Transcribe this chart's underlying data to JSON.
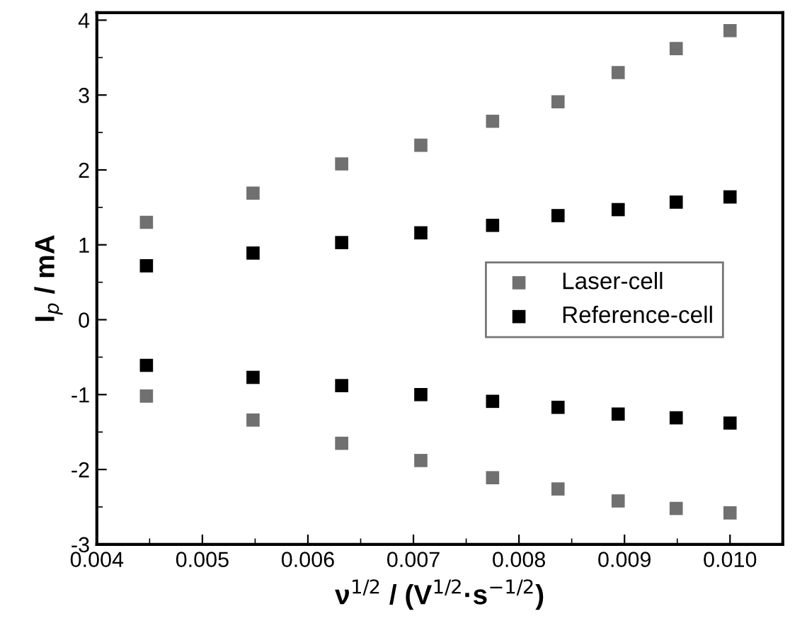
{
  "chart_data": {
    "type": "scatter",
    "xlabel": "ν$^{1/2}$ / (V$^{1/2}$·s$^{−1/2}$)",
    "ylabel": "I$_{p}$ / mA",
    "xlim": [
      0.004,
      0.0105
    ],
    "ylim": [
      -3,
      4.1
    ],
    "xticks": [
      {
        "value": 0.004,
        "label": "0.004"
      },
      {
        "value": 0.005,
        "label": "0.005"
      },
      {
        "value": 0.006,
        "label": "0.006"
      },
      {
        "value": 0.007,
        "label": "0.007"
      },
      {
        "value": 0.008,
        "label": "0.008"
      },
      {
        "value": 0.009,
        "label": "0.009"
      },
      {
        "value": 0.01,
        "label": "0.010"
      }
    ],
    "yticks": [
      -3,
      -2,
      -1,
      0,
      1,
      2,
      3,
      4
    ],
    "grid": false,
    "legend": "right",
    "marker": "square",
    "series": [
      {
        "name": "Laser-cell",
        "color": "#707070",
        "x": [
          0.00447,
          0.00548,
          0.00632,
          0.00707,
          0.00775,
          0.00837,
          0.00894,
          0.00949,
          0.01,
          0.00447,
          0.00548,
          0.00632,
          0.00707,
          0.00775,
          0.00837,
          0.00894,
          0.00949,
          0.01
        ],
        "values": [
          1.3,
          1.69,
          2.08,
          2.33,
          2.65,
          2.91,
          3.3,
          3.62,
          3.86,
          -1.02,
          -1.34,
          -1.65,
          -1.88,
          -2.11,
          -2.26,
          -2.42,
          -2.52,
          -2.58
        ]
      },
      {
        "name": "Reference-cell",
        "color": "#000000",
        "x": [
          0.00447,
          0.00548,
          0.00632,
          0.00707,
          0.00775,
          0.00837,
          0.00894,
          0.00949,
          0.01,
          0.00447,
          0.00548,
          0.00632,
          0.00707,
          0.00775,
          0.00837,
          0.00894,
          0.00949,
          0.01
        ],
        "values": [
          0.72,
          0.89,
          1.03,
          1.16,
          1.26,
          1.39,
          1.47,
          1.57,
          1.64,
          -0.61,
          -0.77,
          -0.88,
          -1.0,
          -1.09,
          -1.17,
          -1.26,
          -1.31,
          -1.38
        ]
      }
    ]
  }
}
